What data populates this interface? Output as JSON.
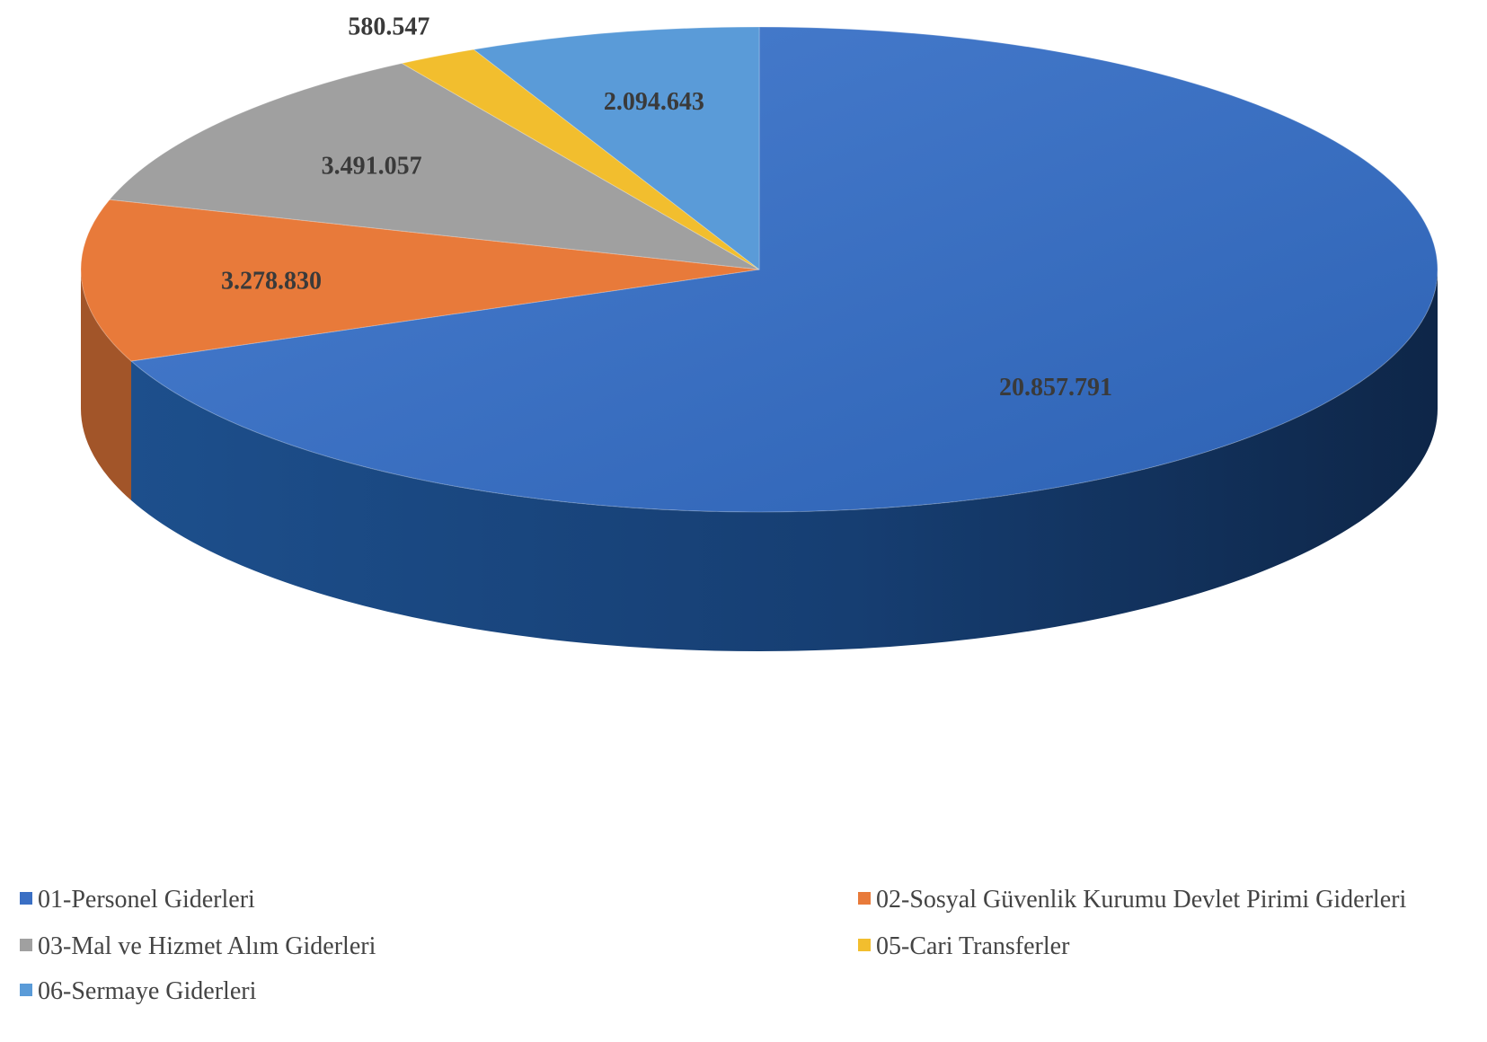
{
  "chart_data": {
    "type": "pie",
    "title": "",
    "slices": [
      {
        "label": "01-Personel Giderleri",
        "value": 20857791,
        "display": "20.857.791",
        "color": "#3a6fc4"
      },
      {
        "label": "02-Sosyal Güvenlik Kurumu Devlet Pirimi Giderleri",
        "value": 3278830,
        "display": "3.278.830",
        "color": "#e87a3a"
      },
      {
        "label": "03-Mal ve Hizmet Alım Giderleri",
        "value": 3491057,
        "display": "3.491.057",
        "color": "#a0a0a0"
      },
      {
        "label": "05-Cari Transferler",
        "value": 580547,
        "display": "580.547",
        "color": "#f2be2e"
      },
      {
        "label": "06-Sermaye Giderleri",
        "value": 2094643,
        "display": "2.094.643",
        "color": "#5a9bd8"
      }
    ],
    "legend_position": "bottom",
    "style": "3d"
  }
}
